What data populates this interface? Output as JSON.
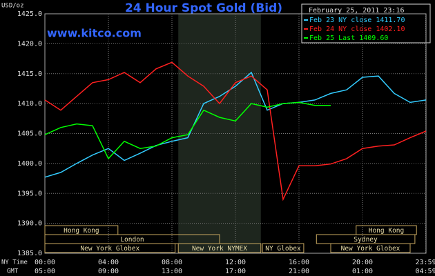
{
  "chart_data": {
    "type": "line",
    "title": "24 Hour Spot Gold (Bid)",
    "watermark": "www.kitco.com",
    "timestamp": "February 25, 2011 23:16",
    "y_label": "USD/oz",
    "x_label": "NY Time",
    "x2_label": "GMT",
    "x": [
      0,
      1,
      2,
      3,
      4,
      5,
      6,
      7,
      8,
      9,
      10,
      11,
      12,
      13,
      14,
      15,
      16,
      17,
      18,
      19,
      20,
      21,
      22,
      23,
      24
    ],
    "series": [
      {
        "name": "Feb 23 NY close 1411.70",
        "color": "#33ccff",
        "values": [
          1397.7,
          1398.5,
          1400,
          1401.4,
          1402.5,
          1400.5,
          1401.7,
          1403,
          1403.7,
          1404.3,
          1410,
          1411.2,
          1412.9,
          1415.2,
          1408.9,
          1410,
          1410.2,
          1410.6,
          1411.7,
          1412.3,
          1414.4,
          1414.6,
          1411.7,
          1410.2,
          1410.6
        ]
      },
      {
        "name": "Feb 24 NY close 1402.10",
        "color": "#ff2020",
        "values": [
          1410.6,
          1408.9,
          1411.2,
          1413.5,
          1414,
          1415.2,
          1413.5,
          1415.8,
          1416.9,
          1414.6,
          1412.9,
          1410,
          1413.5,
          1414.6,
          1412.3,
          1394,
          1399.6,
          1399.6,
          1399.9,
          1400.8,
          1402.5,
          1402.9,
          1403.1,
          1404.3,
          1405.4
        ]
      },
      {
        "name": "Feb 25 Last 1409.60",
        "color": "#00ff00",
        "values": [
          1404.8,
          1406,
          1406.6,
          1406.3,
          1400.8,
          1403.7,
          1402.5,
          1402.9,
          1404.3,
          1404.8,
          1408.9,
          1407.7,
          1407.1,
          1410,
          1409.4,
          1410,
          1410.2,
          1409.7,
          1409.7,
          null,
          null,
          null,
          null,
          null,
          null
        ]
      }
    ],
    "xlim": [
      0,
      24
    ],
    "xticks": [
      {
        "value": 0,
        "label": "00:00"
      },
      {
        "value": 4,
        "label": "04:00"
      },
      {
        "value": 8,
        "label": "08:00"
      },
      {
        "value": 12,
        "label": "12:00"
      },
      {
        "value": 16,
        "label": "16:00"
      },
      {
        "value": 20,
        "label": "20:00"
      },
      {
        "value": 23.98,
        "label": "23:59"
      }
    ],
    "x2ticks": [
      {
        "value": 0,
        "label": "05:00"
      },
      {
        "value": 4,
        "label": "09:00"
      },
      {
        "value": 8,
        "label": "13:00"
      },
      {
        "value": 12,
        "label": "17:00"
      },
      {
        "value": 16,
        "label": "21:00"
      },
      {
        "value": 20,
        "label": "01:00"
      },
      {
        "value": 23.98,
        "label": "04:59"
      }
    ],
    "ylim": [
      1385,
      1425
    ],
    "yticks": [
      {
        "value": 1385,
        "label": "1385.0"
      },
      {
        "value": 1390,
        "label": "1390.0"
      },
      {
        "value": 1395,
        "label": "1395.0"
      },
      {
        "value": 1400,
        "label": "1400.0"
      },
      {
        "value": 1405,
        "label": "1405.0"
      },
      {
        "value": 1410,
        "label": "1410.0"
      },
      {
        "value": 1415,
        "label": "1415.0"
      },
      {
        "value": 1420,
        "label": "1420.0"
      },
      {
        "value": 1425,
        "label": "1425.0"
      }
    ],
    "grid": true,
    "sessions": [
      [
        {
          "name": "Hong Kong",
          "start": 0,
          "end": 4.6
        },
        {
          "name": "Hong Kong",
          "start": 19.6,
          "end": 23.4
        }
      ],
      [
        {
          "name": "London",
          "start": 0,
          "end": 11
        },
        {
          "name": "Sydney",
          "start": 17.1,
          "end": 23.3
        }
      ],
      [
        {
          "name": "New York Globex",
          "start": 0,
          "end": 8.2
        },
        {
          "name": "New York NYMEX",
          "start": 8.4,
          "end": 13.6,
          "shade": true
        },
        {
          "name": "NY Globex",
          "start": 13.7,
          "end": 16.3
        },
        {
          "name": "New York Globex",
          "start": 18,
          "end": 23
        }
      ]
    ]
  }
}
